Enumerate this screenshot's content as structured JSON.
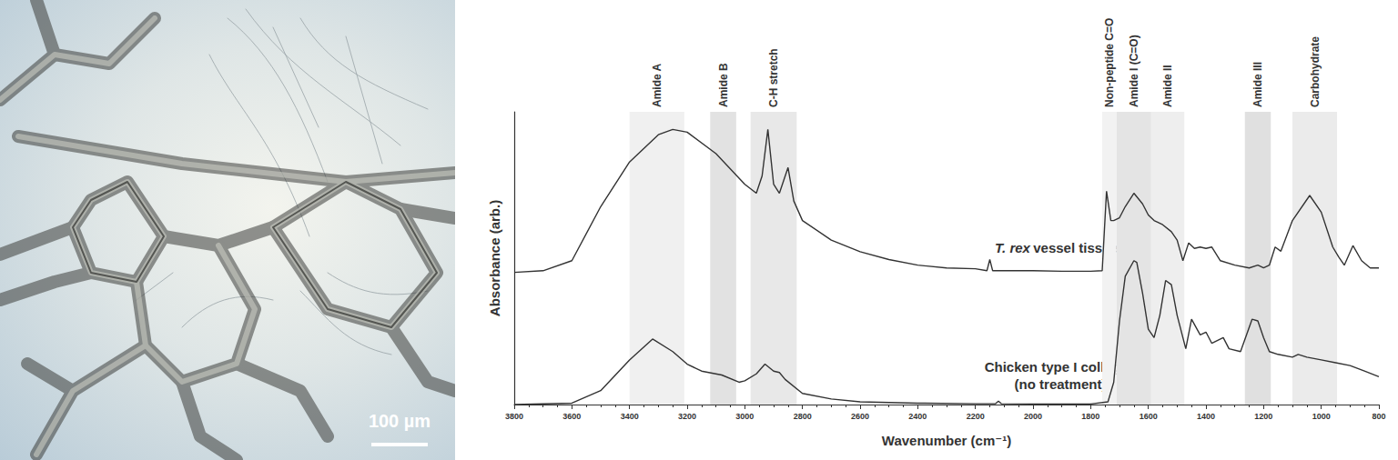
{
  "image": {
    "scale_bar_label": "100 µm"
  },
  "chart_data": {
    "type": "line",
    "x_label": "Wavenumber (cm⁻¹)",
    "y_label": "Absorbance (arb.)",
    "xlim": [
      3800,
      800
    ],
    "xticks": [
      3800,
      3600,
      3400,
      3200,
      3000,
      2800,
      2600,
      2400,
      2200,
      2000,
      1800,
      1600,
      1400,
      1200,
      1000,
      800
    ],
    "ylim": [
      0,
      1.05
    ],
    "tick_labels": "x",
    "grid": false,
    "bands": [
      {
        "label": "Amide A",
        "from": 3400,
        "to": 3210
      },
      {
        "label": "Amide B",
        "from": 3120,
        "to": 3030
      },
      {
        "label": "C-H stretch",
        "from": 2980,
        "to": 2820
      },
      {
        "label": "Non-peptide C=O",
        "from": 1760,
        "to": 1710
      },
      {
        "label": "Amide I (C=O)",
        "from": 1710,
        "to": 1590
      },
      {
        "label": "Amide II",
        "from": 1590,
        "to": 1475
      },
      {
        "label": "Amide III",
        "from": 1265,
        "to": 1175
      },
      {
        "label": "Carbohydrate",
        "from": 1100,
        "to": 945
      }
    ],
    "series": [
      {
        "name": "T. rex vessel tissues",
        "color": "#333333",
        "x": [
          3800,
          3700,
          3600,
          3500,
          3400,
          3300,
          3250,
          3200,
          3100,
          3000,
          2960,
          2940,
          2920,
          2900,
          2880,
          2850,
          2830,
          2800,
          2700,
          2600,
          2500,
          2400,
          2300,
          2200,
          2160,
          2150,
          2140,
          2000,
          1900,
          1800,
          1760,
          1745,
          1730,
          1720,
          1700,
          1680,
          1650,
          1620,
          1600,
          1580,
          1550,
          1520,
          1500,
          1480,
          1460,
          1440,
          1420,
          1400,
          1380,
          1350,
          1300,
          1250,
          1220,
          1200,
          1180,
          1160,
          1140,
          1100,
          1040,
          1000,
          960,
          940,
          920,
          890,
          860,
          830,
          800
        ],
        "values": [
          0.474,
          0.48,
          0.516,
          0.71,
          0.87,
          0.968,
          0.987,
          0.977,
          0.9,
          0.79,
          0.758,
          0.82,
          0.987,
          0.79,
          0.758,
          0.85,
          0.73,
          0.66,
          0.59,
          0.548,
          0.52,
          0.5,
          0.49,
          0.487,
          0.48,
          0.52,
          0.48,
          0.48,
          0.478,
          0.478,
          0.48,
          0.765,
          0.66,
          0.66,
          0.67,
          0.71,
          0.758,
          0.72,
          0.68,
          0.66,
          0.645,
          0.62,
          0.59,
          0.516,
          0.58,
          0.56,
          0.565,
          0.56,
          0.565,
          0.516,
          0.5,
          0.49,
          0.5,
          0.49,
          0.5,
          0.565,
          0.55,
          0.66,
          0.75,
          0.69,
          0.565,
          0.53,
          0.5,
          0.57,
          0.516,
          0.49,
          0.49
        ]
      },
      {
        "name": "Chicken type I collagen (no treatment)",
        "color": "#333333",
        "x": [
          3800,
          3600,
          3500,
          3400,
          3320,
          3250,
          3200,
          3150,
          3080,
          3020,
          3000,
          2960,
          2930,
          2900,
          2880,
          2860,
          2800,
          2700,
          2600,
          2400,
          2200,
          2130,
          2120,
          2110,
          2000,
          1800,
          1740,
          1720,
          1700,
          1680,
          1650,
          1640,
          1620,
          1600,
          1580,
          1560,
          1540,
          1520,
          1500,
          1470,
          1450,
          1420,
          1400,
          1380,
          1340,
          1320,
          1280,
          1240,
          1220,
          1200,
          1180,
          1150,
          1100,
          1080,
          1050,
          1000,
          950,
          900,
          850,
          800
        ],
        "values": [
          0,
          0.005,
          0.05,
          0.16,
          0.235,
          0.19,
          0.145,
          0.12,
          0.106,
          0.08,
          0.085,
          0.11,
          0.145,
          0.12,
          0.115,
          0.09,
          0.04,
          0.02,
          0.01,
          0.005,
          0.003,
          0.003,
          0.012,
          0.003,
          0.002,
          0.002,
          0.01,
          0.08,
          0.3,
          0.46,
          0.516,
          0.51,
          0.4,
          0.27,
          0.24,
          0.32,
          0.445,
          0.43,
          0.32,
          0.2,
          0.306,
          0.25,
          0.26,
          0.22,
          0.24,
          0.2,
          0.19,
          0.306,
          0.3,
          0.24,
          0.19,
          0.18,
          0.17,
          0.18,
          0.17,
          0.16,
          0.15,
          0.14,
          0.12,
          0.1
        ]
      }
    ]
  }
}
